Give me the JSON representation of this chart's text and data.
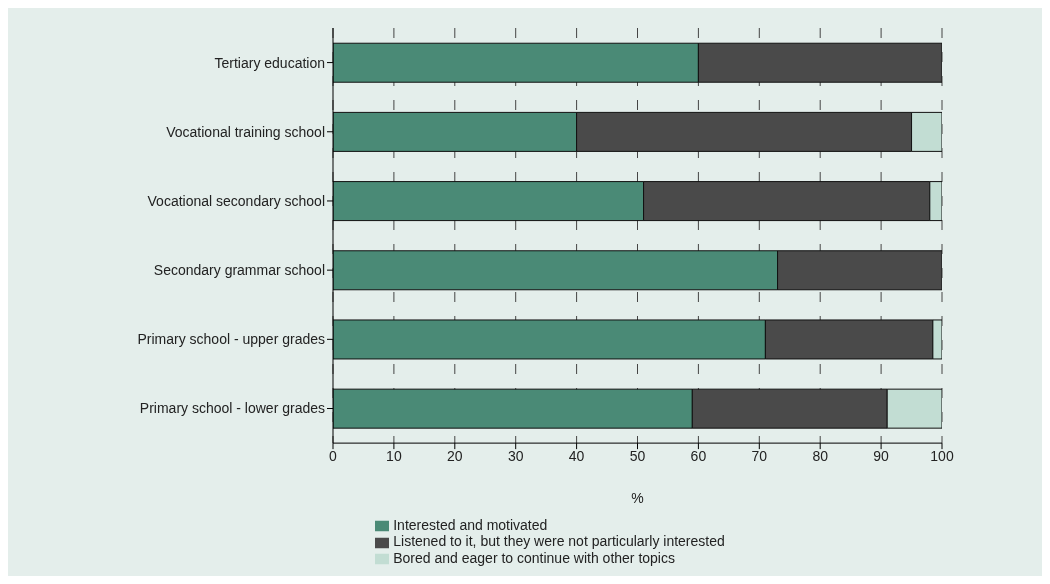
{
  "chart_data": {
    "type": "bar",
    "orientation": "horizontal",
    "stacked": true,
    "xlabel": "%",
    "categories": [
      "Tertiary education",
      "Vocational training school",
      "Vocational secondary school",
      "Secondary grammar school",
      "Primary school - upper grades",
      "Primary school - lower grades"
    ],
    "series": [
      {
        "name": "Interested and motivated",
        "color": "#4a8a76",
        "values": [
          60,
          40,
          51,
          73,
          71,
          59
        ]
      },
      {
        "name": "Listened to it, but they were not particularly interested",
        "color": "#4a4a4a",
        "values": [
          40,
          55,
          47,
          27,
          27.5,
          32
        ]
      },
      {
        "name": "Bored and eager to continue with other topics",
        "color": "#c2ddd3",
        "values": [
          0,
          5,
          2,
          0,
          1.5,
          9
        ]
      }
    ],
    "xlim": [
      0,
      100
    ],
    "xticks": [
      0,
      10,
      20,
      30,
      40,
      50,
      60,
      70,
      80,
      90,
      100
    ],
    "grid": "x",
    "legend": "bottom"
  }
}
